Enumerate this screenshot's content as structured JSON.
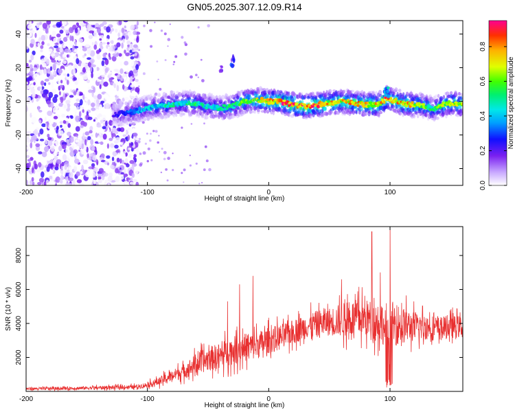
{
  "title": "GN05.2025.307.12.09.R14",
  "chart_data": [
    {
      "type": "heatmap",
      "xlabel": "Height of straight line (km)",
      "ylabel": "Frequency (Hz)",
      "xlim": [
        -200,
        160
      ],
      "ylim": [
        -50,
        48
      ],
      "xticks": [
        -200,
        -100,
        0,
        100
      ],
      "xtick_labels": [
        "-200",
        "-100",
        "0",
        "100"
      ],
      "yticks": [
        -40,
        -20,
        0,
        20,
        40
      ],
      "ytick_labels": [
        "-40",
        "-20",
        "0",
        "20",
        "40"
      ],
      "colorbar": {
        "label": "Normalized spectral amplitude",
        "range": [
          0,
          0.95
        ],
        "ticks": [
          0.0,
          0.2,
          0.4,
          0.6,
          0.8
        ],
        "tick_labels": [
          "0.0",
          "0.2",
          "0.4",
          "0.6",
          "0.8"
        ]
      },
      "noise_region_x": [
        -200,
        -107
      ],
      "signal_start_x": -128,
      "track": {
        "x": [
          -128,
          -120,
          -110,
          -100,
          -90,
          -80,
          -70,
          -60,
          -50,
          -40,
          -30,
          -20,
          -10,
          0,
          10,
          20,
          30,
          40,
          50,
          60,
          70,
          80,
          90,
          98,
          100,
          110,
          120,
          130,
          136,
          140,
          150,
          160
        ],
        "freq": [
          -8,
          -7,
          -6,
          -4,
          -3,
          -2,
          -1,
          -1.5,
          -3,
          -4,
          -3,
          0,
          1,
          0,
          0,
          -2,
          -3,
          -2,
          -1,
          0,
          -1,
          -2,
          -2,
          2,
          1,
          -1,
          -2,
          -3,
          -5,
          -3,
          -1,
          -2
        ],
        "amp": [
          0.2,
          0.3,
          0.38,
          0.42,
          0.45,
          0.5,
          0.5,
          0.55,
          0.45,
          0.5,
          0.55,
          0.65,
          0.7,
          0.82,
          0.88,
          0.9,
          0.88,
          0.9,
          0.82,
          0.75,
          0.8,
          0.78,
          0.75,
          0.9,
          0.85,
          0.8,
          0.75,
          0.6,
          0.5,
          0.65,
          0.7,
          0.68
        ]
      },
      "features": [
        {
          "x": -30,
          "freq": 24,
          "amp": 0.28
        },
        {
          "x": -40,
          "freq": 20,
          "amp": 0.18
        },
        {
          "x": 97,
          "freq": 6,
          "amp": 0.45
        }
      ]
    },
    {
      "type": "line",
      "xlabel": "Height of straight line (km)",
      "ylabel": "SNR (10 * v/v)",
      "xlim": [
        -200,
        160
      ],
      "ylim": [
        0,
        9700
      ],
      "xticks": [
        -200,
        -100,
        0,
        100
      ],
      "xtick_labels": [
        "-200",
        "-100",
        "0",
        "100"
      ],
      "yticks": [
        2000,
        4000,
        6000,
        8000
      ],
      "ytick_labels": [
        "2000",
        "4000",
        "6000",
        "8000"
      ],
      "series": [
        {
          "name": "SNR",
          "color": "#e83030",
          "envelope_x": [
            -200,
            -150,
            -110,
            -100,
            -90,
            -80,
            -70,
            -60,
            -50,
            -40,
            -30,
            -20,
            -10,
            0,
            10,
            20,
            30,
            40,
            50,
            60,
            70,
            80,
            90,
            100,
            110,
            120,
            130,
            140,
            150,
            160
          ],
          "envelope_mean": [
            150,
            200,
            260,
            380,
            600,
            900,
            1200,
            1600,
            1900,
            2100,
            2400,
            2600,
            2700,
            3000,
            3200,
            3500,
            3800,
            4000,
            4100,
            4200,
            4300,
            4300,
            4100,
            4000,
            3900,
            3800,
            3800,
            3700,
            3800,
            3800
          ],
          "envelope_spread": [
            150,
            180,
            220,
            300,
            450,
            600,
            800,
            1100,
            1300,
            1400,
            1500,
            1500,
            1500,
            1400,
            1400,
            1300,
            1300,
            1400,
            1500,
            1800,
            2000,
            2000,
            2200,
            2500,
            2000,
            1600,
            1400,
            1300,
            1200,
            1200
          ],
          "spikes": [
            {
              "x": -34,
              "y": 5300
            },
            {
              "x": -24,
              "y": 6300
            },
            {
              "x": -13,
              "y": 6800
            },
            {
              "x": 85,
              "y": 9400
            },
            {
              "x": 98,
              "y": 9700
            },
            {
              "x": 100,
              "y": 9700
            },
            {
              "x": 92,
              "y": 7000
            },
            {
              "x": 60,
              "y": 6600
            }
          ]
        }
      ]
    }
  ],
  "colors": {
    "snr_line": "#e83030",
    "axis": "#000000",
    "background": "#ffffff"
  }
}
